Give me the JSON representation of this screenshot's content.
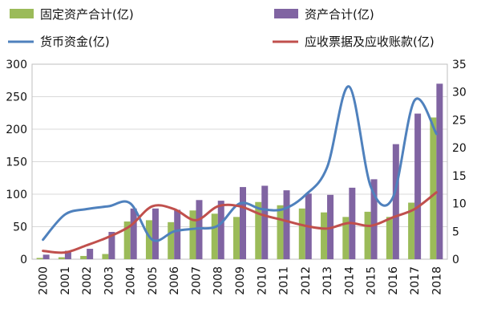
{
  "chart_data": {
    "type": "bar",
    "categories": [
      "2000",
      "2001",
      "2002",
      "2003",
      "2004",
      "2005",
      "2006",
      "2007",
      "2008",
      "2009",
      "2010",
      "2011",
      "2012",
      "2013",
      "2014",
      "2015",
      "2016",
      "2017",
      "2018"
    ],
    "series": [
      {
        "name": "固定资产合计(亿)",
        "kind": "bar",
        "axis": "left",
        "color": "#9bbb59",
        "values": [
          2,
          3,
          5,
          8,
          58,
          60,
          57,
          75,
          70,
          65,
          88,
          83,
          78,
          72,
          65,
          73,
          65,
          87,
          218
        ]
      },
      {
        "name": "资产合计(亿)",
        "kind": "bar",
        "axis": "left",
        "color": "#8064a2",
        "values": [
          7,
          13,
          16,
          42,
          78,
          78,
          76,
          91,
          90,
          111,
          113,
          106,
          101,
          99,
          110,
          123,
          177,
          224,
          270
        ]
      },
      {
        "name": "货币资金(亿)",
        "kind": "line",
        "axis": "right",
        "color": "#4f81bd",
        "values": [
          3.5,
          8,
          9,
          9.5,
          10,
          3.5,
          5,
          5.5,
          6,
          10,
          9,
          9,
          11.5,
          16.5,
          31,
          13,
          11,
          28.5,
          22.5
        ]
      },
      {
        "name": "应收票据及应收账款(亿)",
        "kind": "line",
        "axis": "right",
        "color": "#c0504d",
        "values": [
          1.5,
          1.2,
          2.5,
          4,
          6,
          9.5,
          9,
          7,
          9.5,
          9.5,
          8,
          7,
          6,
          5.5,
          6.5,
          6,
          7.5,
          9,
          12
        ]
      }
    ],
    "left_ylim": [
      0,
      300
    ],
    "left_ticks": [
      "0",
      "50",
      "100",
      "150",
      "200",
      "250",
      "300"
    ],
    "right_ylim": [
      0,
      35
    ],
    "right_ticks": [
      "0",
      "5",
      "10",
      "15",
      "20",
      "25",
      "30",
      "35"
    ],
    "grid": true,
    "legend_position": "top"
  }
}
